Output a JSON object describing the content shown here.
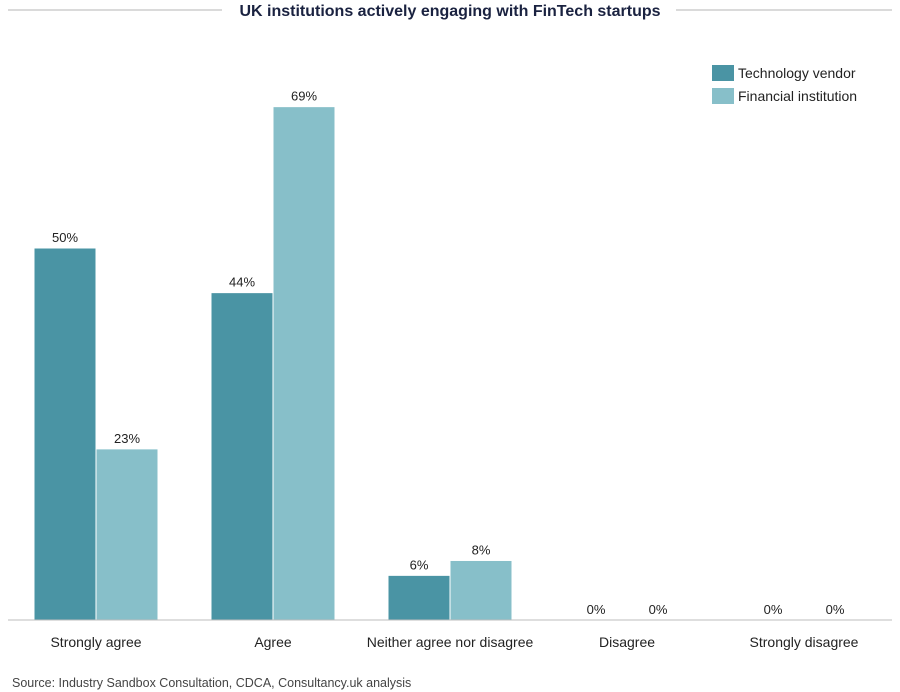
{
  "chart_data": {
    "type": "bar",
    "title": "UK institutions actively engaging with FinTech startups",
    "xlabel": "",
    "ylabel": "",
    "ylim": [
      0,
      75
    ],
    "grid": false,
    "legend_position": "top-right",
    "categories": [
      "Strongly agree",
      "Agree",
      "Neither agree nor disagree",
      "Disagree",
      "Strongly disagree"
    ],
    "series": [
      {
        "name": "Technology vendor",
        "color": "#4a94a4",
        "values": [
          50,
          44,
          6,
          0,
          0
        ],
        "labels": [
          "50%",
          "44%",
          "6%",
          "0%",
          "0%"
        ]
      },
      {
        "name": "Financial institution",
        "color": "#87bfc9",
        "values": [
          23,
          69,
          8,
          0,
          0
        ],
        "labels": [
          "23%",
          "69%",
          "8%",
          "0%",
          "0%"
        ]
      }
    ],
    "source": "Source: Industry Sandbox Consultation, CDCA, Consultancy.uk analysis"
  }
}
